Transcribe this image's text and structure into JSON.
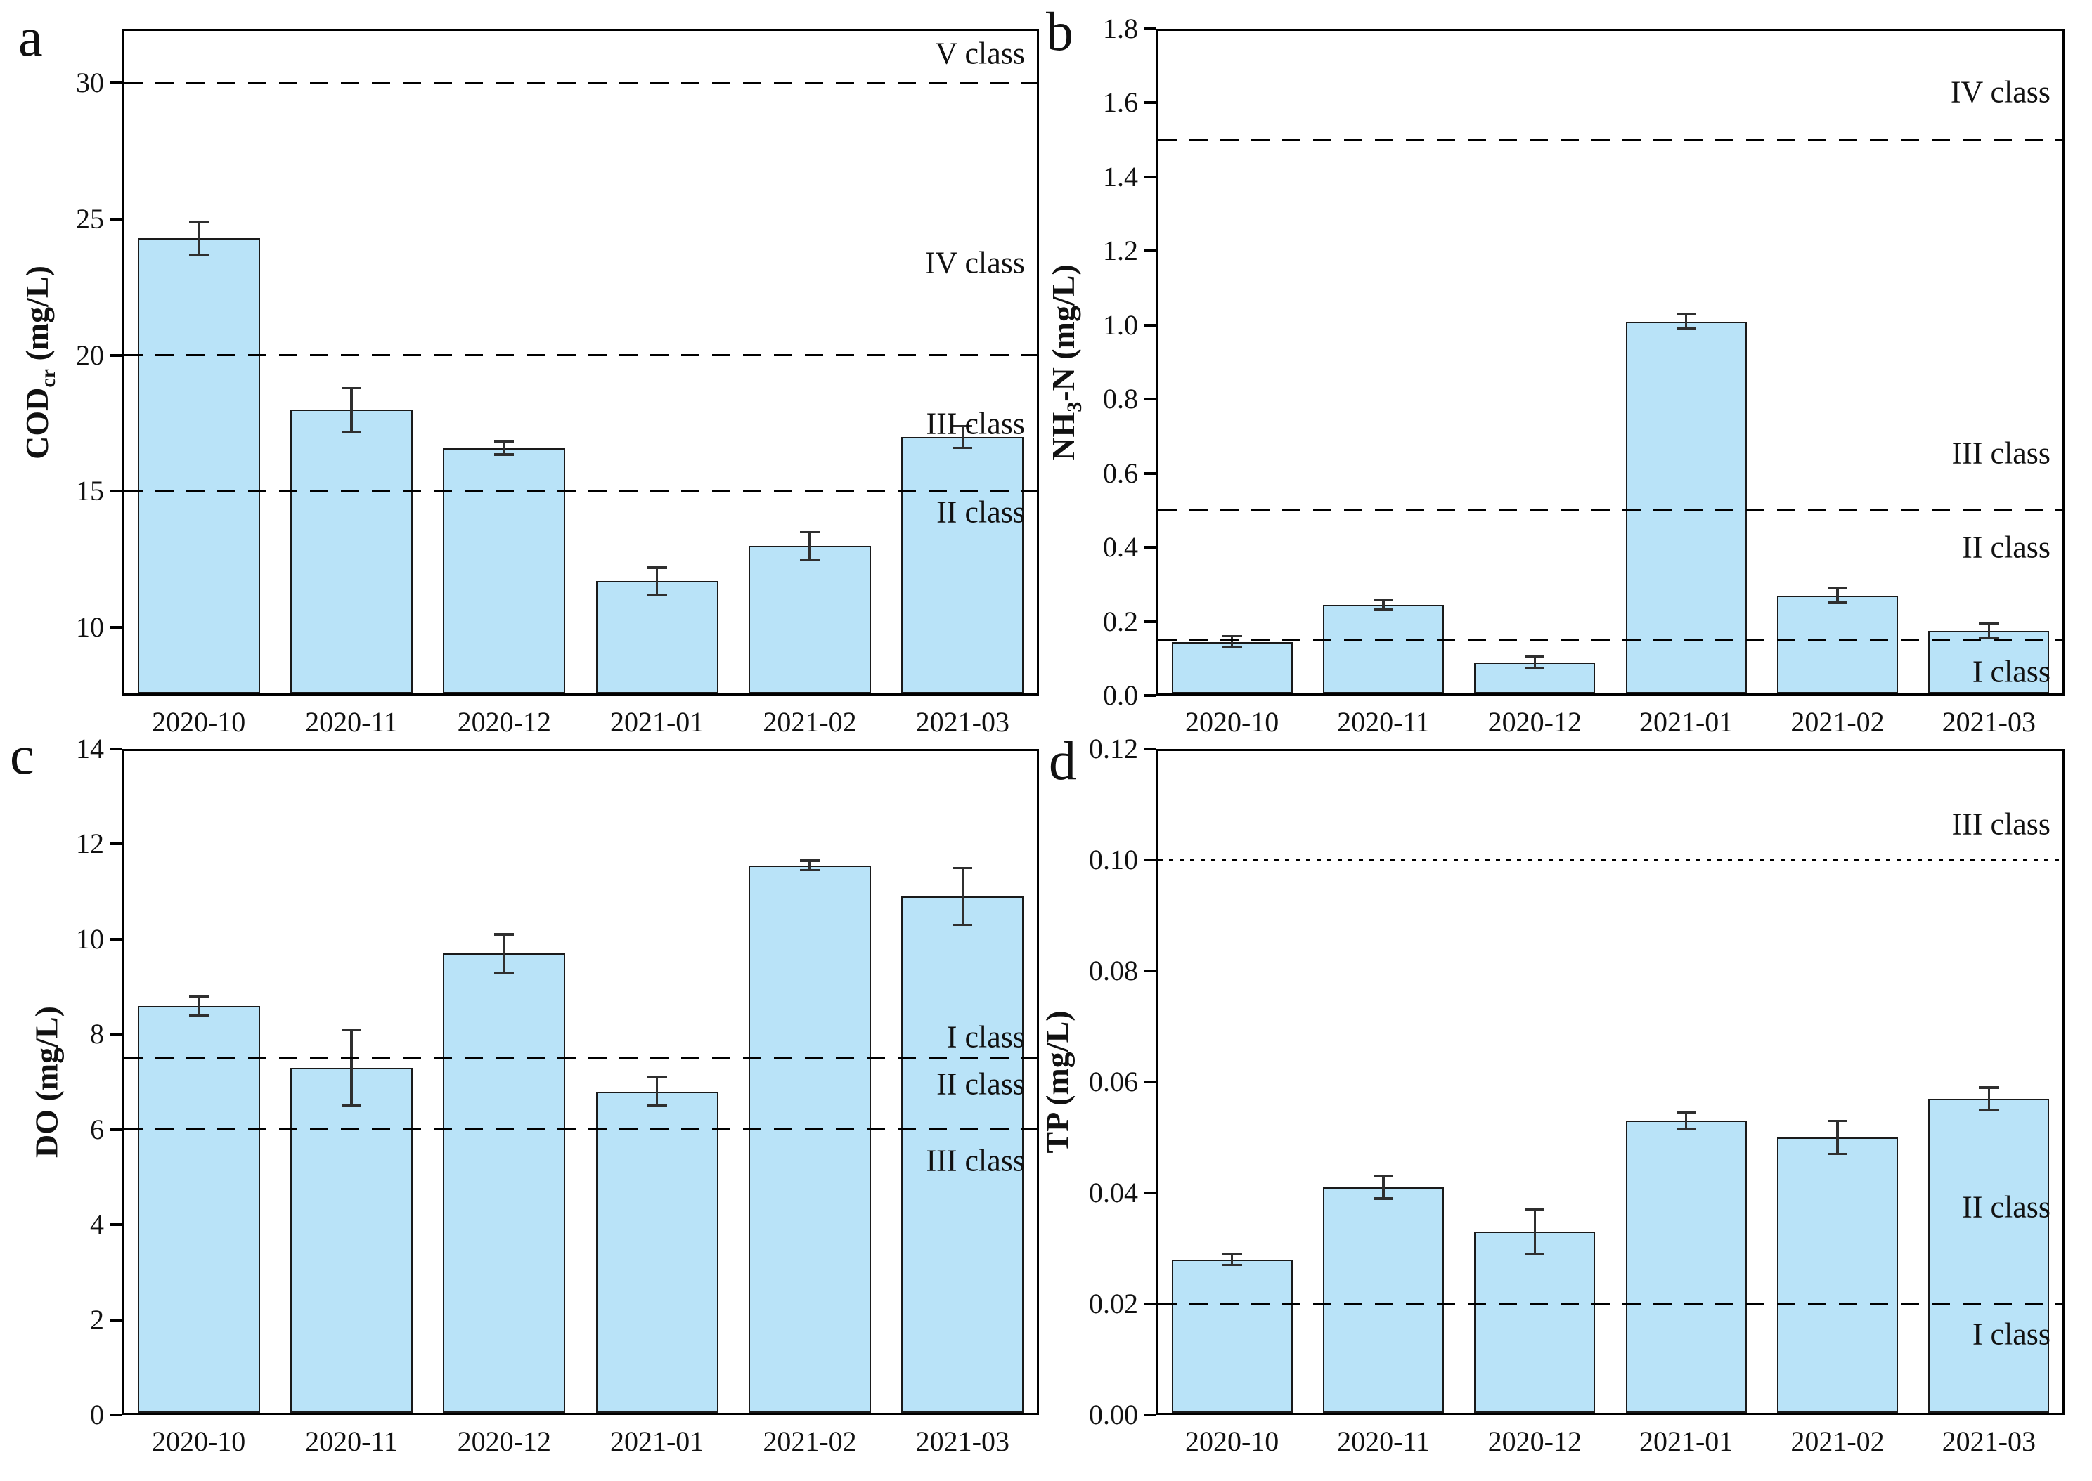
{
  "figure": {
    "type": "water-quality-monitoring-bar-charts",
    "bar_fill_color": "#b9e3f8",
    "bar_edge_color": "#1a1a1a",
    "error_bar_color": "#2f2f2f",
    "threshold_line_color": "#000000",
    "categories": [
      "2020-10",
      "2020-11",
      "2020-12",
      "2021-01",
      "2021-02",
      "2021-03"
    ]
  },
  "chart_data": [
    {
      "type": "bar",
      "panel_letter": "a",
      "ylabel": {
        "pre": "COD",
        "sub": "cr",
        "post": " (mg/L)"
      },
      "ylim": [
        7.5,
        32
      ],
      "yticks": [
        {
          "v": 10,
          "label": "10"
        },
        {
          "v": 15,
          "label": "15"
        },
        {
          "v": 20,
          "label": "20"
        },
        {
          "v": 25,
          "label": "25"
        },
        {
          "v": 30,
          "label": "30"
        }
      ],
      "categories": [
        "2020-10",
        "2020-11",
        "2020-12",
        "2021-01",
        "2021-02",
        "2021-03"
      ],
      "values": [
        24.3,
        18.0,
        16.6,
        11.7,
        13.0,
        17.0
      ],
      "errors": [
        0.6,
        0.8,
        0.25,
        0.5,
        0.5,
        0.4
      ],
      "thresholds": [
        {
          "v": 30,
          "style": "dashed"
        },
        {
          "v": 20,
          "style": "dashed"
        },
        {
          "v": 15,
          "style": "dashed"
        }
      ],
      "class_labels": [
        {
          "text": "V class",
          "y": 31.1
        },
        {
          "text": "IV class",
          "y": 23.4
        },
        {
          "text": "III class",
          "y": 17.5
        },
        {
          "text": "II class",
          "y": 14.25
        }
      ]
    },
    {
      "type": "bar",
      "panel_letter": "b",
      "ylabel": {
        "pre": "NH",
        "sub": "3",
        "post": "-N (mg/L)"
      },
      "ylim": [
        0,
        1.8
      ],
      "yticks": [
        {
          "v": 0.0,
          "label": "0.0"
        },
        {
          "v": 0.2,
          "label": "0.2"
        },
        {
          "v": 0.4,
          "label": "0.4"
        },
        {
          "v": 0.6,
          "label": "0.6"
        },
        {
          "v": 0.8,
          "label": "0.8"
        },
        {
          "v": 1.0,
          "label": "1.0"
        },
        {
          "v": 1.2,
          "label": "1.2"
        },
        {
          "v": 1.4,
          "label": "1.4"
        },
        {
          "v": 1.6,
          "label": "1.6"
        },
        {
          "v": 1.8,
          "label": "1.8"
        }
      ],
      "categories": [
        "2020-10",
        "2020-11",
        "2020-12",
        "2021-01",
        "2021-02",
        "2021-03"
      ],
      "values": [
        0.145,
        0.245,
        0.09,
        1.01,
        0.27,
        0.175
      ],
      "errors": [
        0.015,
        0.012,
        0.015,
        0.02,
        0.02,
        0.02
      ],
      "thresholds": [
        {
          "v": 1.5,
          "style": "dashed"
        },
        {
          "v": 0.5,
          "style": "dashed"
        },
        {
          "v": 0.15,
          "style": "dashed"
        }
      ],
      "class_labels": [
        {
          "text": "IV class",
          "y": 1.63
        },
        {
          "text": "III class",
          "y": 0.655
        },
        {
          "text": "II class",
          "y": 0.4
        },
        {
          "text": "I class",
          "y": 0.065
        }
      ]
    },
    {
      "type": "bar",
      "panel_letter": "c",
      "ylabel": {
        "pre": "DO",
        "sub": "",
        "post": " (mg/L)"
      },
      "ylim": [
        0,
        14
      ],
      "yticks": [
        {
          "v": 0,
          "label": "0"
        },
        {
          "v": 2,
          "label": "2"
        },
        {
          "v": 4,
          "label": "4"
        },
        {
          "v": 6,
          "label": "6"
        },
        {
          "v": 8,
          "label": "8"
        },
        {
          "v": 10,
          "label": "10"
        },
        {
          "v": 12,
          "label": "12"
        },
        {
          "v": 14,
          "label": "14"
        }
      ],
      "categories": [
        "2020-10",
        "2020-11",
        "2020-12",
        "2021-01",
        "2021-02",
        "2021-03"
      ],
      "values": [
        8.6,
        7.3,
        9.7,
        6.8,
        11.55,
        10.9
      ],
      "errors": [
        0.2,
        0.8,
        0.4,
        0.3,
        0.1,
        0.6
      ],
      "thresholds": [
        {
          "v": 7.5,
          "style": "dashed"
        },
        {
          "v": 6,
          "style": "dashed"
        }
      ],
      "class_labels": [
        {
          "text": "I class",
          "y": 7.95
        },
        {
          "text": "II class",
          "y": 6.95
        },
        {
          "text": "III class",
          "y": 5.35
        }
      ]
    },
    {
      "type": "bar",
      "panel_letter": "d",
      "ylabel": {
        "pre": "TP",
        "sub": "",
        "post": " (mg/L)"
      },
      "ylim": [
        0,
        0.12
      ],
      "yticks": [
        {
          "v": 0.0,
          "label": "0.00"
        },
        {
          "v": 0.02,
          "label": "0.02"
        },
        {
          "v": 0.04,
          "label": "0.04"
        },
        {
          "v": 0.06,
          "label": "0.06"
        },
        {
          "v": 0.08,
          "label": "0.08"
        },
        {
          "v": 0.1,
          "label": "0.10"
        },
        {
          "v": 0.12,
          "label": "0.12"
        }
      ],
      "categories": [
        "2020-10",
        "2020-11",
        "2020-12",
        "2021-01",
        "2021-02",
        "2021-03"
      ],
      "values": [
        0.028,
        0.041,
        0.033,
        0.053,
        0.05,
        0.057
      ],
      "errors": [
        0.001,
        0.002,
        0.004,
        0.0015,
        0.003,
        0.002
      ],
      "thresholds": [
        {
          "v": 0.1,
          "style": "dotted"
        },
        {
          "v": 0.02,
          "style": "dashed"
        }
      ],
      "class_labels": [
        {
          "text": "III class",
          "y": 0.1065
        },
        {
          "text": "II class",
          "y": 0.0375
        },
        {
          "text": "I class",
          "y": 0.0145
        }
      ]
    }
  ]
}
